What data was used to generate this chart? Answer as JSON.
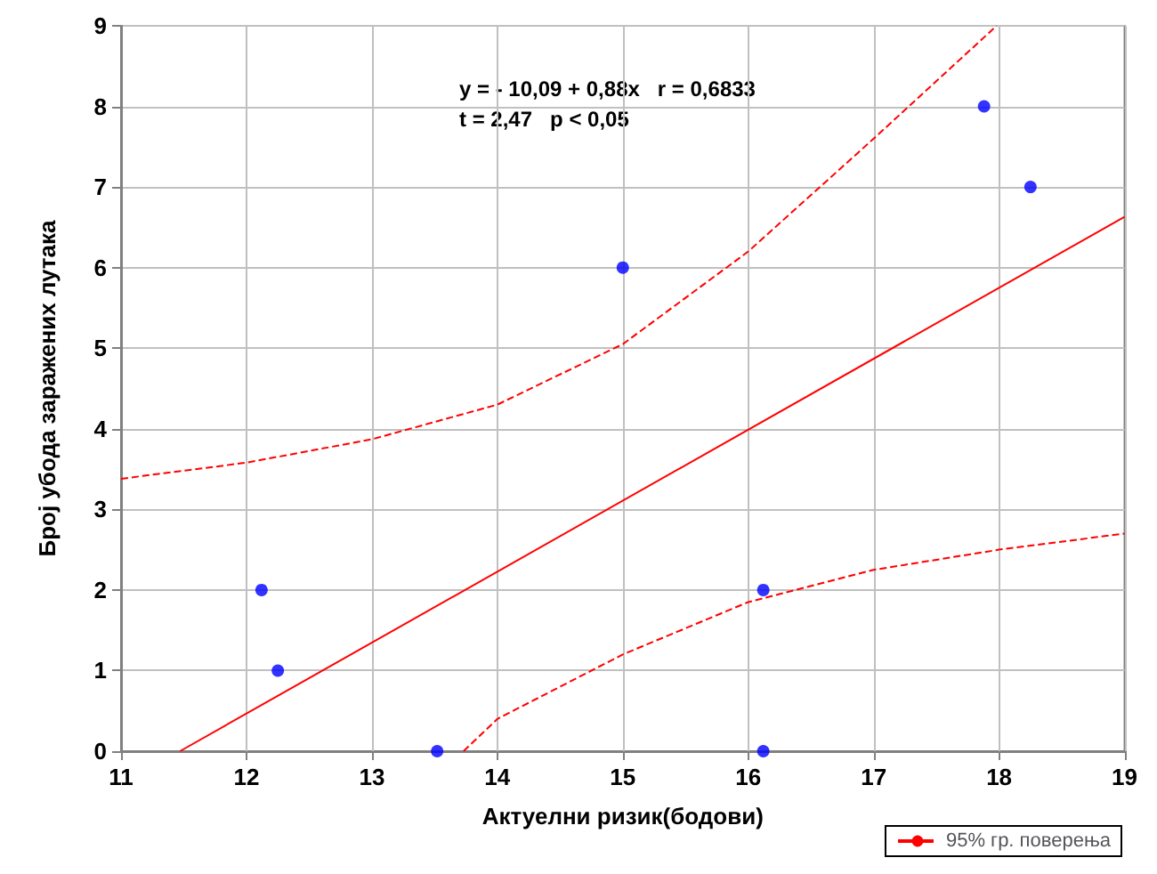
{
  "chart_data": {
    "type": "scatter",
    "xlabel": "Актуелни ризик(бодови)",
    "ylabel": "Број убода заражених лутака",
    "annotations": [
      "y = - 10,09 + 0,88x   r = 0,6833",
      "t = 2,47   p < 0,05"
    ],
    "xlim": [
      11,
      19
    ],
    "xticks": [
      11,
      12,
      13,
      14,
      15,
      16,
      17,
      18,
      19
    ],
    "ylim": [
      0,
      9
    ],
    "yticks": [
      0,
      1,
      2,
      3,
      4,
      5,
      6,
      7,
      8,
      9
    ],
    "grid": true,
    "legend": "bottom right",
    "marker": "circle",
    "series": [
      {
        "color": "#0000ff",
        "x": [
          12.12,
          12.25,
          13.52,
          15.0,
          16.12,
          16.12,
          17.88,
          18.25
        ],
        "values": [
          2,
          1,
          0,
          6,
          2,
          0,
          8,
          7
        ]
      },
      {
        "type": "line",
        "color": "#ff0000",
        "line_style": "solid",
        "marker": "none",
        "x": [
          11.47,
          19
        ],
        "values": [
          0,
          6.63
        ]
      },
      {
        "type": "line",
        "name": "95% гр. поверења",
        "color": "#ff0000",
        "line_style": "dashed",
        "marker": "none",
        "x": [
          11,
          12,
          13,
          14,
          15,
          16,
          17,
          17.98
        ],
        "values": [
          3.38,
          3.58,
          3.87,
          4.3,
          5.05,
          6.2,
          7.6,
          9
        ]
      },
      {
        "type": "line",
        "color": "#ff0000",
        "line_style": "dashed",
        "marker": "none",
        "x": [
          13.73,
          14,
          15,
          16,
          17,
          18,
          19
        ],
        "values": [
          0,
          0.4,
          1.2,
          1.85,
          2.25,
          2.5,
          2.7
        ]
      }
    ]
  }
}
